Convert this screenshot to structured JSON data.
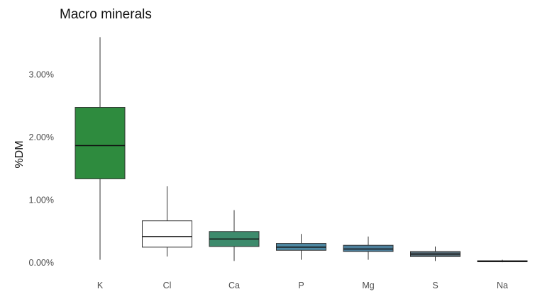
{
  "chart_data": {
    "type": "boxplot",
    "title": "Macro minerals",
    "xlabel": "",
    "ylabel": "%DM",
    "ylim": [
      0,
      3.6
    ],
    "grid": false,
    "y_ticks": [
      {
        "value": 0,
        "label": "0.00%"
      },
      {
        "value": 1,
        "label": "1.00%"
      },
      {
        "value": 2,
        "label": "2.00%"
      },
      {
        "value": 3,
        "label": "3.00%"
      }
    ],
    "categories": [
      "K",
      "Cl",
      "Ca",
      "P",
      "Mg",
      "S",
      "Na"
    ],
    "boxes": [
      {
        "category": "K",
        "min": 0.05,
        "q1": 1.34,
        "median": 1.87,
        "q3": 2.48,
        "max": 3.6,
        "color": "#2e8b3e"
      },
      {
        "category": "Cl",
        "min": 0.1,
        "q1": 0.25,
        "median": 0.42,
        "q3": 0.67,
        "max": 1.22,
        "color": "#ffffff"
      },
      {
        "category": "Ca",
        "min": 0.03,
        "q1": 0.26,
        "median": 0.38,
        "q3": 0.5,
        "max": 0.84,
        "color": "#3d8b6c"
      },
      {
        "category": "P",
        "min": 0.05,
        "q1": 0.2,
        "median": 0.25,
        "q3": 0.31,
        "max": 0.46,
        "color": "#4d88a3"
      },
      {
        "category": "Mg",
        "min": 0.05,
        "q1": 0.18,
        "median": 0.22,
        "q3": 0.28,
        "max": 0.42,
        "color": "#4d7f9b"
      },
      {
        "category": "S",
        "min": 0.03,
        "q1": 0.1,
        "median": 0.14,
        "q3": 0.18,
        "max": 0.26,
        "color": "#566a74"
      },
      {
        "category": "Na",
        "min": 0.01,
        "q1": 0.02,
        "median": 0.025,
        "q3": 0.03,
        "max": 0.05,
        "color": "#3b4d6a"
      }
    ]
  }
}
